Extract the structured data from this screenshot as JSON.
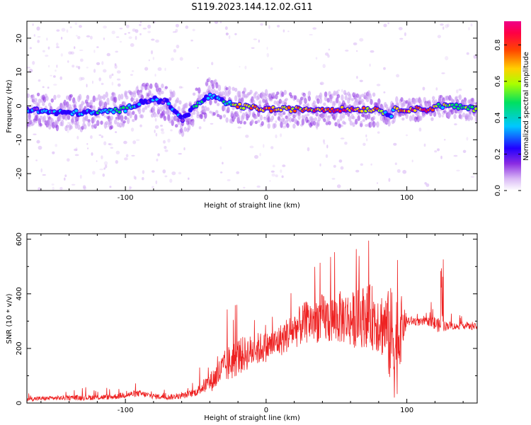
{
  "title": "S119.2023.144.12.02.G11",
  "colors": {
    "line": "#ee2222",
    "axes": "#000000",
    "colormap": [
      "#ffffff",
      "#d9b8f5",
      "#8a2be2",
      "#3300ff",
      "#00d5ff",
      "#00ee66",
      "#aaff00",
      "#ffcc00",
      "#ff2200",
      "#ff0077"
    ]
  },
  "chart_data": [
    {
      "type": "heatmap",
      "xlabel": "Height of straight line (km)",
      "ylabel": "Frequency (Hz)",
      "xlim": [
        -170,
        150
      ],
      "ylim": [
        -25,
        25
      ],
      "xticks": [
        -100,
        0,
        100
      ],
      "yticks": [
        -20,
        -10,
        0,
        10,
        20
      ],
      "colorbar": {
        "label": "Normalized spectral amplitude",
        "range": [
          0.0,
          0.93
        ],
        "ticks": [
          0.0,
          0.2,
          0.4,
          0.6,
          0.8
        ]
      },
      "ridge": {
        "x": [
          -170,
          -150,
          -120,
          -100,
          -90,
          -80,
          -70,
          -60,
          -50,
          -40,
          -30,
          -20,
          0,
          20,
          40,
          60,
          80,
          85,
          88,
          92,
          100,
          110,
          118,
          120,
          130,
          150
        ],
        "frequency": [
          -1,
          -2,
          -2,
          -1,
          1,
          2,
          1,
          -4,
          0,
          3,
          1,
          0,
          -1,
          -1,
          -1,
          -1,
          -1,
          -2,
          -3,
          -1,
          -1,
          -1,
          -1,
          0,
          0,
          -1
        ],
        "amplitude": [
          0.35,
          0.35,
          0.45,
          0.5,
          0.4,
          0.35,
          0.3,
          0.35,
          0.45,
          0.4,
          0.5,
          0.75,
          0.85,
          0.8,
          0.85,
          0.88,
          0.75,
          0.5,
          0.35,
          0.7,
          0.9,
          0.9,
          0.85,
          0.6,
          0.6,
          0.6
        ]
      }
    },
    {
      "type": "line",
      "xlabel": "Height of straight line (km)",
      "ylabel": "SNR (10 * v/v)",
      "xlim": [
        -170,
        150
      ],
      "ylim": [
        0,
        620
      ],
      "xticks": [
        -100,
        0,
        100
      ],
      "yticks": [
        0,
        200,
        400,
        600
      ],
      "series": [
        {
          "x": [
            -170,
            -150,
            -130,
            -110,
            -100,
            -90,
            -80,
            -70,
            -60,
            -50,
            -45,
            -40,
            -35,
            -30,
            -25,
            -20,
            -15,
            -10,
            -5,
            0,
            5,
            10,
            15,
            20,
            25,
            30,
            35,
            40,
            45,
            50,
            55,
            60,
            65,
            70,
            75,
            80,
            85,
            88,
            90,
            92,
            95,
            98,
            100,
            105,
            110,
            115,
            120,
            125,
            130,
            135,
            140,
            145,
            150
          ],
          "values": [
            15,
            18,
            20,
            22,
            30,
            35,
            25,
            22,
            25,
            40,
            60,
            75,
            100,
            130,
            150,
            170,
            180,
            190,
            200,
            205,
            215,
            230,
            250,
            270,
            285,
            300,
            305,
            310,
            305,
            310,
            315,
            305,
            310,
            320,
            315,
            300,
            280,
            240,
            250,
            200,
            270,
            290,
            300,
            300,
            295,
            300,
            290,
            280,
            285,
            280,
            285,
            280,
            280
          ],
          "noise": [
            8,
            8,
            10,
            10,
            12,
            12,
            10,
            10,
            10,
            15,
            25,
            35,
            50,
            60,
            70,
            70,
            65,
            60,
            60,
            55,
            55,
            60,
            65,
            70,
            75,
            80,
            85,
            90,
            90,
            95,
            100,
            100,
            110,
            115,
            120,
            120,
            130,
            180,
            200,
            220,
            150,
            60,
            20,
            15,
            15,
            15,
            30,
            20,
            15,
            12,
            12,
            12,
            12
          ]
        }
      ]
    }
  ]
}
